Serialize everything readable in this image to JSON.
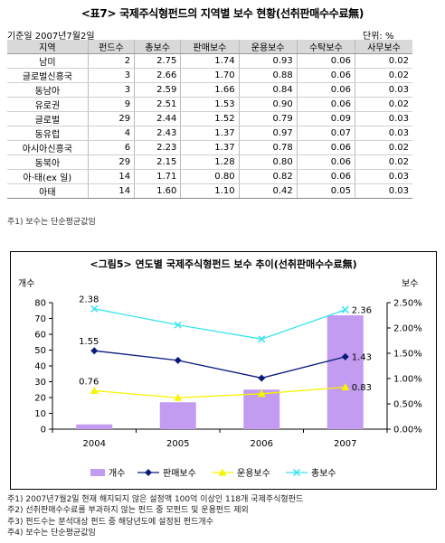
{
  "table_title": "<표7> 국제주식형펀드의 지역별 보수 현황(선취판매수수료無)",
  "base_date": "기준일 2007년7월2일",
  "unit": "단위: %",
  "headers": [
    "지역",
    "펀드수",
    "총보수",
    "판매보수",
    "운용보수",
    "수탁보수",
    "사무보수"
  ],
  "rows": [
    [
      "남미",
      "2",
      "2.75",
      "1.74",
      "0.93",
      "0.06",
      "0.02"
    ],
    [
      "글로벌신흥국",
      "3",
      "2.66",
      "1.70",
      "0.88",
      "0.06",
      "0.02"
    ],
    [
      "동남아",
      "3",
      "2.59",
      "1.66",
      "0.84",
      "0.06",
      "0.03"
    ],
    [
      "유로권",
      "9",
      "2.51",
      "1.53",
      "0.90",
      "0.06",
      "0.02"
    ],
    [
      "글로벌",
      "29",
      "2.44",
      "1.52",
      "0.79",
      "0.09",
      "0.03"
    ],
    [
      "동유럽",
      "4",
      "2.43",
      "1.37",
      "0.97",
      "0.07",
      "0.03"
    ],
    [
      "아시아신흥국",
      "6",
      "2.23",
      "1.37",
      "0.78",
      "0.06",
      "0.02"
    ],
    [
      "동북아",
      "29",
      "2.15",
      "1.28",
      "0.80",
      "0.06",
      "0.02"
    ],
    [
      "아·태(ex 일)",
      "14",
      "1.71",
      "0.80",
      "0.82",
      "0.06",
      "0.03"
    ],
    [
      "아태",
      "14",
      "1.60",
      "1.10",
      "0.42",
      "0.05",
      "0.03"
    ]
  ],
  "table_note": "주1) 보수는 단순평균값임",
  "chart_data": {
    "type": "bar",
    "title": "<그림5> 연도별 국제주식형펀드 보수 추이(선취판매수수료無)",
    "categories": [
      "2004",
      "2005",
      "2006",
      "2007"
    ],
    "y_left_label": "개수",
    "y_left_ticks": [
      "0",
      "10",
      "20",
      "30",
      "40",
      "50",
      "60",
      "70",
      "80"
    ],
    "y_left_range": [
      0,
      80
    ],
    "y_right_label": "보수",
    "y_right_ticks": [
      "0.00%",
      "0.50%",
      "1.00%",
      "1.50%",
      "2.00%",
      "2.50%"
    ],
    "y_right_range": [
      0,
      2.5
    ],
    "series": [
      {
        "name": "개수",
        "type": "bar",
        "axis": "left",
        "color": "#c39bf0",
        "values": [
          3,
          17,
          25,
          72
        ],
        "labels": [
          "",
          "",
          "",
          ""
        ]
      },
      {
        "name": "판매보수",
        "type": "line",
        "axis": "right",
        "color": "#0a1a7a",
        "values": [
          1.55,
          1.36,
          1.01,
          1.43
        ],
        "labels": [
          "1.55",
          "",
          "",
          "1.43"
        ]
      },
      {
        "name": "운용보수",
        "type": "line",
        "axis": "right",
        "color": "#f5f500",
        "values": [
          0.76,
          0.62,
          0.7,
          0.83
        ],
        "labels": [
          "0.76",
          "",
          "",
          "0.83"
        ]
      },
      {
        "name": "총보수",
        "type": "line",
        "axis": "right",
        "color": "#35e4ee",
        "values": [
          2.38,
          2.06,
          1.78,
          2.36
        ],
        "labels": [
          "2.38",
          "",
          "",
          "2.36"
        ]
      }
    ],
    "grid": false,
    "legend_placement": "bottom"
  },
  "footnotes": [
    "주1) 2007년7월2일 현재 해지되지 않은 설정액 100억 이상인 118개 국제주식형펀드",
    "주2) 선취판매수수료를 부과하지 않는 펀드 중 모펀드 및 운용펀드 제외",
    "주3) 펀드수는 분석대상 펀드 중 해당년도에 설정된 펀드개수",
    "주4) 보수는 단순평균값임"
  ]
}
